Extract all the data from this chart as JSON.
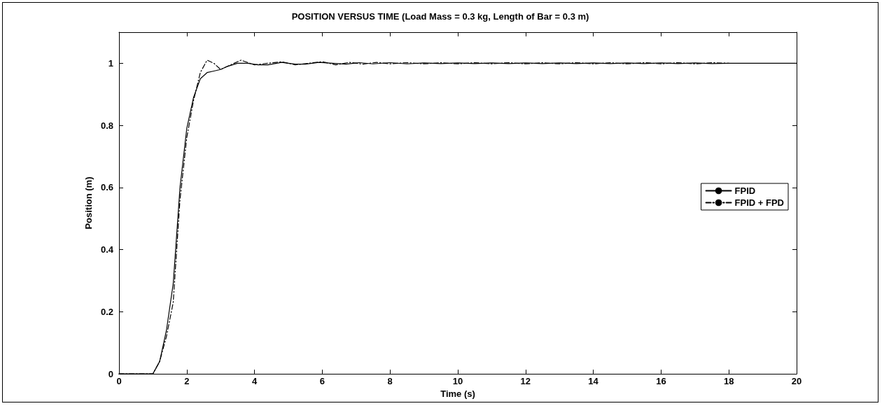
{
  "chart_data": {
    "type": "line",
    "title": "POSITION VERSUS TIME (Load Mass = 0.3 kg, Length of Bar = 0.3 m)",
    "xlabel": "Time (s)",
    "ylabel": "Position (m)",
    "xlim": [
      0,
      20
    ],
    "xticks": [
      0,
      2,
      4,
      6,
      8,
      10,
      12,
      14,
      16,
      18,
      20
    ],
    "ylim": [
      0,
      1.1
    ],
    "yticks": [
      0,
      0.2,
      0.4,
      0.6,
      0.8,
      1
    ],
    "grid": false,
    "legend": "right",
    "marker": "none",
    "series": [
      {
        "name": "FPID",
        "color": "#000000",
        "line_style": "solid",
        "x": [
          0,
          1,
          1.2,
          1.4,
          1.6,
          1.8,
          2.0,
          2.2,
          2.4,
          2.6,
          2.8,
          3.0,
          3.2,
          3.5,
          3.8,
          4.1,
          4.4,
          4.8,
          5.2,
          5.5,
          5.9,
          6.3,
          6.7,
          7.1,
          7.5,
          8,
          8.5,
          9,
          9.5,
          10,
          10.5,
          11,
          11.5,
          12,
          12.5,
          13,
          13.5,
          14,
          14.5,
          15,
          15.5,
          16,
          16.5,
          17,
          17.5,
          18,
          20
        ],
        "values": [
          0,
          0,
          0.04,
          0.14,
          0.29,
          0.6,
          0.79,
          0.89,
          0.95,
          0.97,
          0.975,
          0.98,
          0.99,
          1.0,
          1.0,
          0.995,
          0.995,
          1.003,
          0.997,
          0.997,
          1.003,
          1.0,
          0.997,
          1.002,
          0.998,
          1.002,
          0.998,
          1.001,
          0.999,
          1.001,
          0.999,
          1.001,
          0.999,
          1.001,
          0.999,
          1.001,
          0.999,
          1.001,
          0.999,
          1.001,
          0.999,
          1.001,
          0.999,
          1.001,
          0.999,
          1.0,
          1.0
        ]
      },
      {
        "name": "FPID + FPD",
        "color": "#000000",
        "line_style": "dashdot",
        "x": [
          0,
          1,
          1.2,
          1.4,
          1.6,
          1.8,
          2.0,
          2.2,
          2.4,
          2.6,
          2.8,
          3.0,
          3.3,
          3.6,
          4.0,
          4.4,
          4.8,
          5.2,
          5.6,
          6.0,
          6.4,
          6.8,
          7.2,
          7.6,
          8,
          8.5,
          9,
          9.5,
          10,
          10.5,
          11,
          11.5,
          12,
          12.5,
          13,
          13.5,
          14,
          14.5,
          15,
          15.5,
          16,
          16.5,
          17,
          17.5,
          18
        ],
        "values": [
          0,
          0,
          0.04,
          0.12,
          0.23,
          0.56,
          0.76,
          0.88,
          0.97,
          1.01,
          1.0,
          0.98,
          0.995,
          1.01,
          0.995,
          1.0,
          1.005,
          0.995,
          1.0,
          1.005,
          0.995,
          1.003,
          0.997,
          1.003,
          0.998,
          1.002,
          0.998,
          1.002,
          0.998,
          1.002,
          0.998,
          1.002,
          0.998,
          1.002,
          0.998,
          1.002,
          0.998,
          1.002,
          0.998,
          1.002,
          0.998,
          1.002,
          0.998,
          1.002,
          1.0
        ]
      }
    ]
  }
}
